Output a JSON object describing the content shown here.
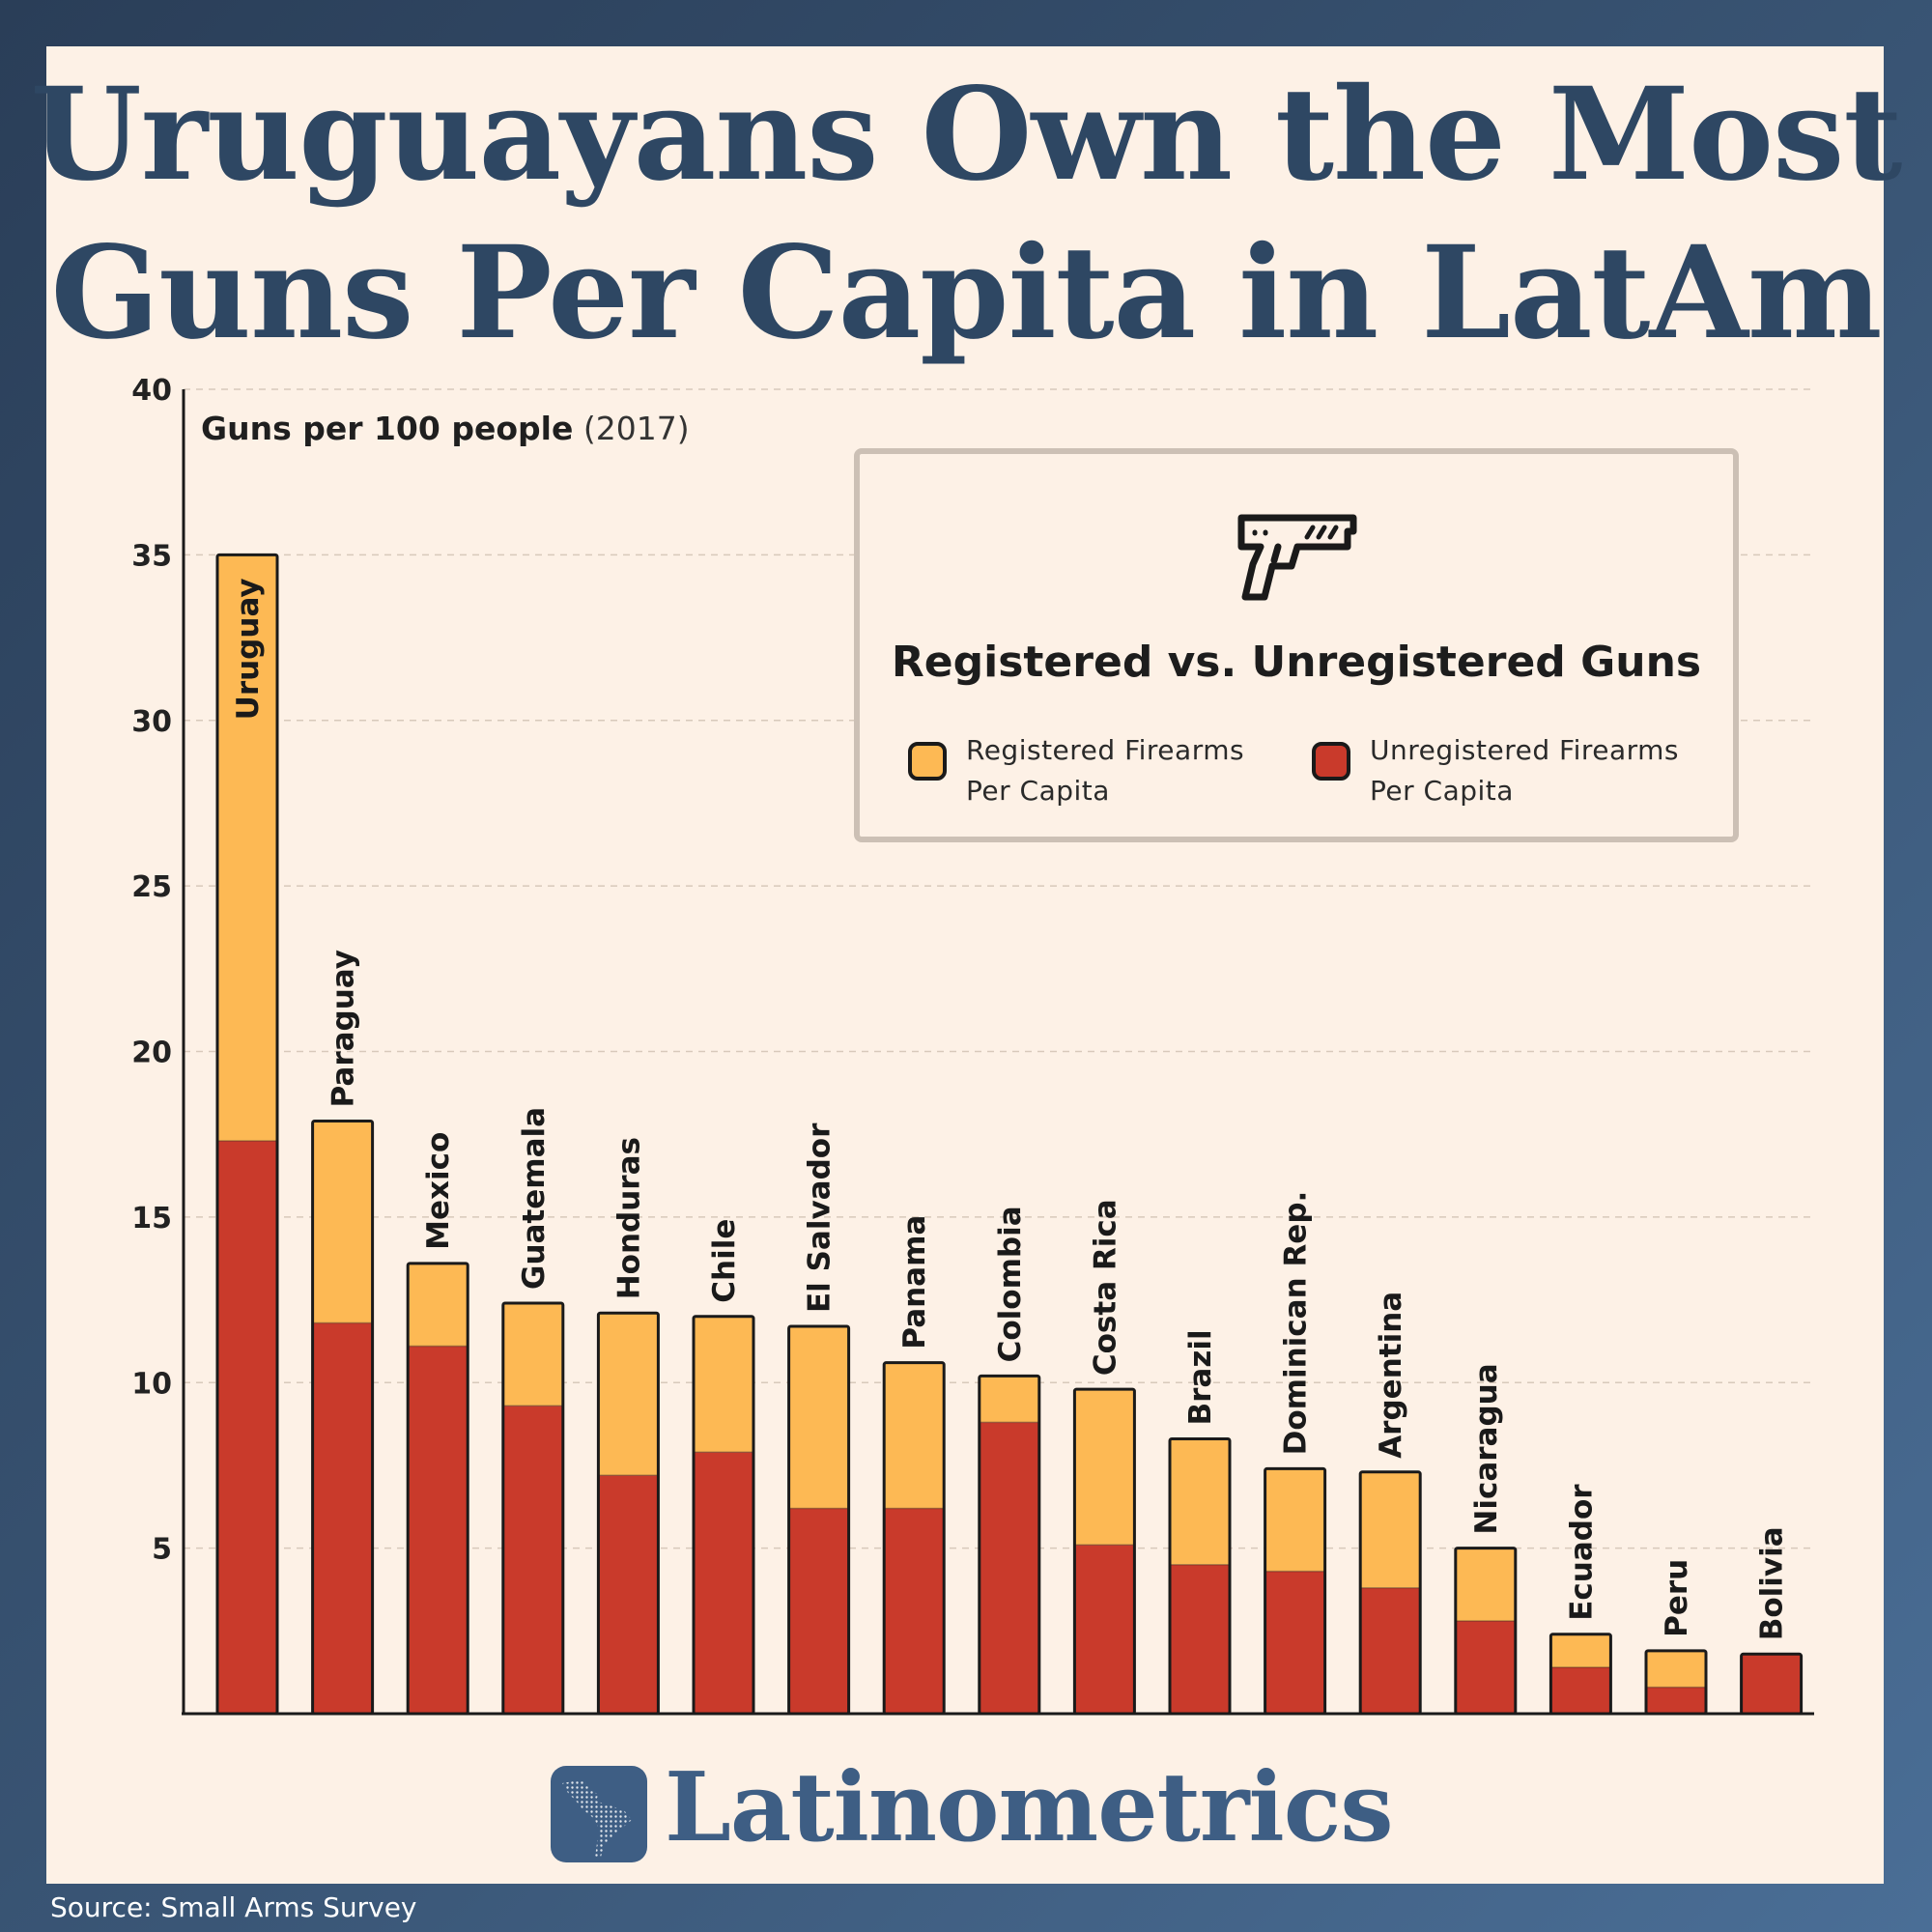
{
  "title": {
    "line1": "Uruguayans Own the Most",
    "line2": "Guns Per Capita in LatAm"
  },
  "chart_data": {
    "type": "bar",
    "stacked": true,
    "title": "Uruguayans Own the Most Guns Per Capita in LatAm",
    "ylabel": "Guns per 100 people",
    "ylabel_year": "(2017)",
    "ylim": [
      0,
      40
    ],
    "yticks": [
      5,
      10,
      15,
      20,
      25,
      30,
      35,
      40
    ],
    "grid": "horizontal dashed",
    "legend_position": "top-right",
    "categories": [
      "Uruguay",
      "Paraguay",
      "Mexico",
      "Guatemala",
      "Honduras",
      "Chile",
      "El Salvador",
      "Panama",
      "Colombia",
      "Costa Rica",
      "Brazil",
      "Dominican Rep.",
      "Argentina",
      "Nicaragua",
      "Ecuador",
      "Peru",
      "Bolivia"
    ],
    "series": [
      {
        "name": "Unregistered Firearms Per Capita",
        "color": "#c93a2b",
        "values": [
          17.3,
          11.8,
          11.1,
          9.3,
          7.2,
          7.9,
          6.2,
          6.2,
          8.8,
          5.1,
          4.5,
          4.3,
          3.8,
          2.8,
          1.4,
          0.8,
          1.8
        ]
      },
      {
        "name": "Registered Firearms Per Capita",
        "color": "#fdb954",
        "values": [
          17.7,
          6.1,
          2.5,
          3.1,
          4.9,
          4.1,
          5.5,
          4.4,
          1.4,
          4.7,
          3.8,
          3.1,
          3.5,
          2.2,
          1.0,
          1.1,
          0.0
        ]
      }
    ]
  },
  "legend": {
    "title": "Registered vs. Unregistered Guns",
    "items": [
      {
        "line1": "Registered Firearms",
        "line2": "Per Capita",
        "color": "#fdb954"
      },
      {
        "line1": "Unregistered Firearms",
        "line2": "Per Capita",
        "color": "#c93a2b"
      }
    ],
    "icon": "pistol-icon"
  },
  "logo": {
    "text": "Latinometrics",
    "icon": "latin-america-map-icon"
  },
  "source": "Source: Small Arms Survey"
}
